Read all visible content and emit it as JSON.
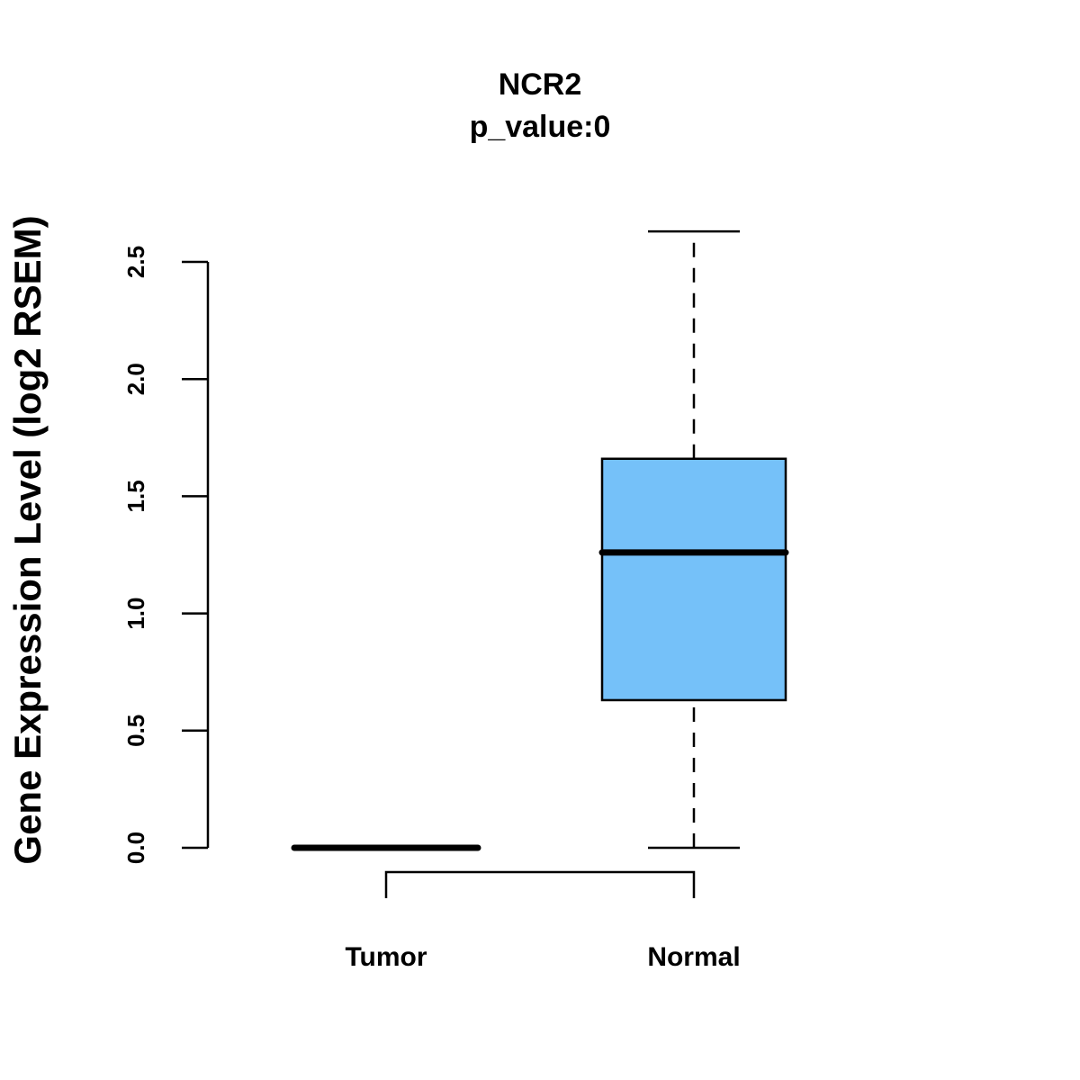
{
  "chart_data": {
    "type": "box",
    "title": "NCR2",
    "subtitle": "p_value:0",
    "xlabel": "",
    "ylabel": "Gene Expression Level (log2 RSEM)",
    "ylim": [
      0,
      2.5
    ],
    "yticks": [
      "0.0",
      "0.5",
      "1.0",
      "1.5",
      "2.0",
      "2.5"
    ],
    "ytick_values": [
      0,
      0.5,
      1.0,
      1.5,
      2.0,
      2.5
    ],
    "categories": [
      "Tumor",
      "Normal"
    ],
    "boxes": [
      {
        "name": "Tumor",
        "min": 0,
        "q1": 0,
        "median": 0,
        "q3": 0,
        "max": 0,
        "color": "#ffffff"
      },
      {
        "name": "Normal",
        "min": 0,
        "q1": 0.63,
        "median": 1.26,
        "q3": 1.66,
        "max": 2.63,
        "color": "#75C1F9"
      }
    ],
    "comparison_bracket": [
      "Tumor",
      "Normal"
    ],
    "grid": false
  }
}
